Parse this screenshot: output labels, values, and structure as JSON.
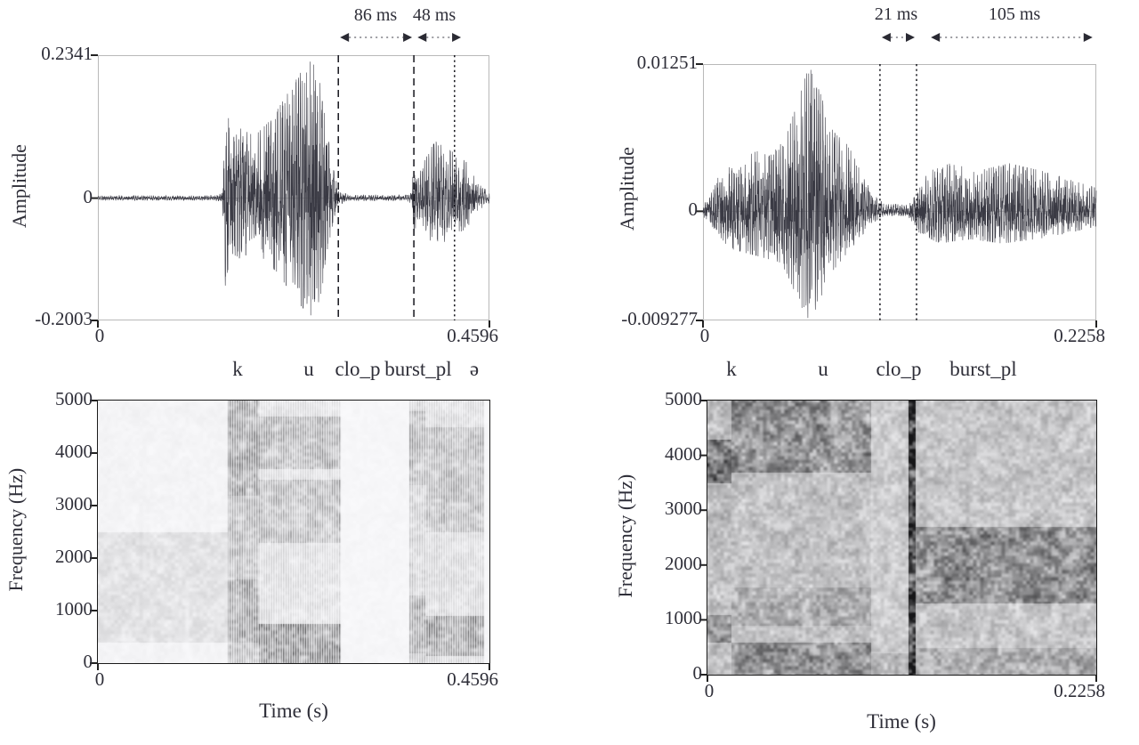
{
  "figure": {
    "description": "Acoustic waveform and spectrogram analysis of two speech tokens",
    "background": "#ffffff",
    "text_color": "#2e2e38",
    "accent_color": "#1a1a1a"
  },
  "chart_data": [
    {
      "id": "waveform-left",
      "type": "line",
      "ylabel": "Amplitude",
      "ylim": [
        -0.2003,
        0.2341
      ],
      "xlim": [
        0,
        0.4596
      ],
      "y_ticks": [
        "0.2341",
        "0",
        "-0.2003"
      ],
      "x_ticks": [
        "0",
        "0.4596"
      ],
      "duration_annotations": [
        {
          "label": "86 ms",
          "x0": 0.614,
          "x1": 0.807
        },
        {
          "label": "48 ms",
          "x0": 0.812,
          "x1": 0.932
        }
      ],
      "marker_lines": [
        {
          "x": 0.614,
          "style": "dashed"
        },
        {
          "x": 0.807,
          "style": "dashed"
        },
        {
          "x": 0.911,
          "style": "dotted"
        }
      ],
      "segment_labels": [
        {
          "label": "k",
          "x": 0.357
        },
        {
          "label": "u",
          "x": 0.539
        },
        {
          "label": "clo_p",
          "x": 0.665
        },
        {
          "label": "burst_pl",
          "x": 0.818
        },
        {
          "label": "ə",
          "x": 0.961
        }
      ],
      "envelope_pos": [
        [
          0,
          0.018
        ],
        [
          0.3,
          0.018
        ],
        [
          0.318,
          0.04
        ],
        [
          0.326,
          0.78
        ],
        [
          0.338,
          0.45
        ],
        [
          0.36,
          0.5
        ],
        [
          0.4,
          0.44
        ],
        [
          0.44,
          0.55
        ],
        [
          0.48,
          0.72
        ],
        [
          0.52,
          0.9
        ],
        [
          0.553,
          1.0
        ],
        [
          0.575,
          0.72
        ],
        [
          0.595,
          0.28
        ],
        [
          0.614,
          0.06
        ],
        [
          0.64,
          0.022
        ],
        [
          0.79,
          0.022
        ],
        [
          0.802,
          0.06
        ],
        [
          0.809,
          0.38
        ],
        [
          0.818,
          0.14
        ],
        [
          0.835,
          0.3
        ],
        [
          0.862,
          0.4
        ],
        [
          0.9,
          0.34
        ],
        [
          0.94,
          0.26
        ],
        [
          0.972,
          0.1
        ],
        [
          1,
          0.04
        ]
      ],
      "envelope_neg": null,
      "seed": 11
    },
    {
      "id": "waveform-right",
      "type": "line",
      "ylabel": "Amplitude",
      "ylim": [
        -0.009277,
        0.01251
      ],
      "xlim": [
        0,
        0.2258
      ],
      "y_ticks": [
        "0.01251",
        "0",
        "-0.009277"
      ],
      "x_ticks": [
        "0",
        "0.2258"
      ],
      "duration_annotations": [
        {
          "label": "21 ms",
          "x0": 0.45,
          "x1": 0.543
        },
        {
          "label": "105 ms",
          "x0": 0.575,
          "x1": 0.995
        }
      ],
      "marker_lines": [
        {
          "x": 0.45,
          "style": "dotted"
        },
        {
          "x": 0.543,
          "style": "dotted"
        }
      ],
      "segment_labels": [
        {
          "label": "k",
          "x": 0.073
        },
        {
          "label": "u",
          "x": 0.305
        },
        {
          "label": "clo_p",
          "x": 0.497
        },
        {
          "label": "burst_pl",
          "x": 0.713
        }
      ],
      "envelope_pos": [
        [
          0,
          0.04
        ],
        [
          0.02,
          0.12
        ],
        [
          0.05,
          0.32
        ],
        [
          0.09,
          0.28
        ],
        [
          0.13,
          0.42
        ],
        [
          0.17,
          0.38
        ],
        [
          0.21,
          0.5
        ],
        [
          0.24,
          0.75
        ],
        [
          0.27,
          1.0
        ],
        [
          0.3,
          0.8
        ],
        [
          0.33,
          0.55
        ],
        [
          0.37,
          0.45
        ],
        [
          0.41,
          0.22
        ],
        [
          0.44,
          0.1
        ],
        [
          0.46,
          0.05
        ],
        [
          0.52,
          0.05
        ],
        [
          0.545,
          0.12
        ],
        [
          0.57,
          0.28
        ],
        [
          0.63,
          0.33
        ],
        [
          0.7,
          0.28
        ],
        [
          0.78,
          0.33
        ],
        [
          0.86,
          0.28
        ],
        [
          0.93,
          0.22
        ],
        [
          1,
          0.16
        ]
      ],
      "envelope_neg": [
        [
          0,
          0.04
        ],
        [
          0.03,
          0.2
        ],
        [
          0.07,
          0.35
        ],
        [
          0.12,
          0.4
        ],
        [
          0.17,
          0.45
        ],
        [
          0.21,
          0.55
        ],
        [
          0.245,
          0.85
        ],
        [
          0.265,
          1.0
        ],
        [
          0.29,
          0.9
        ],
        [
          0.32,
          0.6
        ],
        [
          0.36,
          0.42
        ],
        [
          0.41,
          0.2
        ],
        [
          0.44,
          0.09
        ],
        [
          0.46,
          0.045
        ],
        [
          0.52,
          0.045
        ],
        [
          0.55,
          0.2
        ],
        [
          0.6,
          0.3
        ],
        [
          0.68,
          0.26
        ],
        [
          0.76,
          0.3
        ],
        [
          0.85,
          0.26
        ],
        [
          0.93,
          0.2
        ],
        [
          1,
          0.14
        ]
      ],
      "seed": 23
    },
    {
      "id": "spectrogram-left",
      "type": "heatmap",
      "ylabel": "Frequency (Hz)",
      "xlabel": "Time (s)",
      "ylim": [
        0,
        5000
      ],
      "xlim": [
        0,
        0.4596
      ],
      "y_ticks": [
        "5000",
        "4000",
        "3000",
        "2000",
        "1000",
        "0"
      ],
      "x_ticks": [
        "0",
        "0.4596"
      ],
      "seed": 5,
      "segments": [
        {
          "x0": 0,
          "x1": 0.33,
          "base": 0.05,
          "bands": [
            {
              "f0": 400,
              "f1": 2500,
              "a": 0.1
            }
          ]
        },
        {
          "x0": 0.33,
          "x1": 0.41,
          "base": 0.45,
          "striate": true,
          "bands": [
            {
              "f0": 3200,
              "f1": 5000,
              "a": 0.2
            },
            {
              "f0": 400,
              "f1": 1600,
              "a": 0.2
            }
          ]
        },
        {
          "x0": 0.41,
          "x1": 0.62,
          "base": 0.22,
          "striate": true,
          "bands": [
            {
              "f0": 0,
              "f1": 750,
              "a": 0.55
            },
            {
              "f0": 2300,
              "f1": 3500,
              "a": 0.26
            },
            {
              "f0": 3700,
              "f1": 4700,
              "a": 0.3
            }
          ]
        },
        {
          "x0": 0.62,
          "x1": 0.795,
          "base": 0.035,
          "bands": []
        },
        {
          "x0": 0.795,
          "x1": 0.835,
          "base": 0.32,
          "striate": true,
          "bands": [
            {
              "f0": 200,
              "f1": 1300,
              "a": 0.25
            },
            {
              "f0": 3400,
              "f1": 4800,
              "a": 0.2
            }
          ]
        },
        {
          "x0": 0.835,
          "x1": 0.985,
          "base": 0.25,
          "striate": true,
          "bands": [
            {
              "f0": 150,
              "f1": 900,
              "a": 0.45
            },
            {
              "f0": 2500,
              "f1": 4500,
              "a": 0.22
            }
          ]
        },
        {
          "x0": 0.985,
          "x1": 1.01,
          "base": 0.03,
          "bands": []
        }
      ]
    },
    {
      "id": "spectrogram-right",
      "type": "heatmap",
      "ylabel": "Frequency (Hz)",
      "xlabel": "Time (s)",
      "ylim": [
        0,
        5000
      ],
      "xlim": [
        0,
        0.2258
      ],
      "y_ticks": [
        "5000",
        "4000",
        "3000",
        "2000",
        "1000",
        "0"
      ],
      "x_ticks": [
        "0",
        "0.2258"
      ],
      "seed": 9,
      "segments": [
        {
          "x0": 0,
          "x1": 0.06,
          "base": 0.38,
          "bands": [
            {
              "f0": 600,
              "f1": 1100,
              "a": 0.35
            },
            {
              "f0": 3500,
              "f1": 4300,
              "a": 0.4
            }
          ]
        },
        {
          "x0": 0.06,
          "x1": 0.42,
          "base": 0.36,
          "bands": [
            {
              "f0": 3700,
              "f1": 5000,
              "a": 0.3
            },
            {
              "f0": 0,
              "f1": 600,
              "a": 0.28
            },
            {
              "f0": 900,
              "f1": 1600,
              "a": 0.12
            }
          ]
        },
        {
          "x0": 0.42,
          "x1": 0.515,
          "base": 0.3,
          "bands": [
            {
              "f0": 0,
              "f1": 400,
              "a": 0.15
            }
          ]
        },
        {
          "x0": 0.515,
          "x1": 0.535,
          "base": 1.15,
          "bands": []
        },
        {
          "x0": 0.535,
          "x1": 1.01,
          "base": 0.34,
          "bands": [
            {
              "f0": 1300,
              "f1": 2700,
              "a": 0.33
            },
            {
              "f0": 0,
              "f1": 500,
              "a": 0.15
            }
          ]
        }
      ]
    }
  ]
}
